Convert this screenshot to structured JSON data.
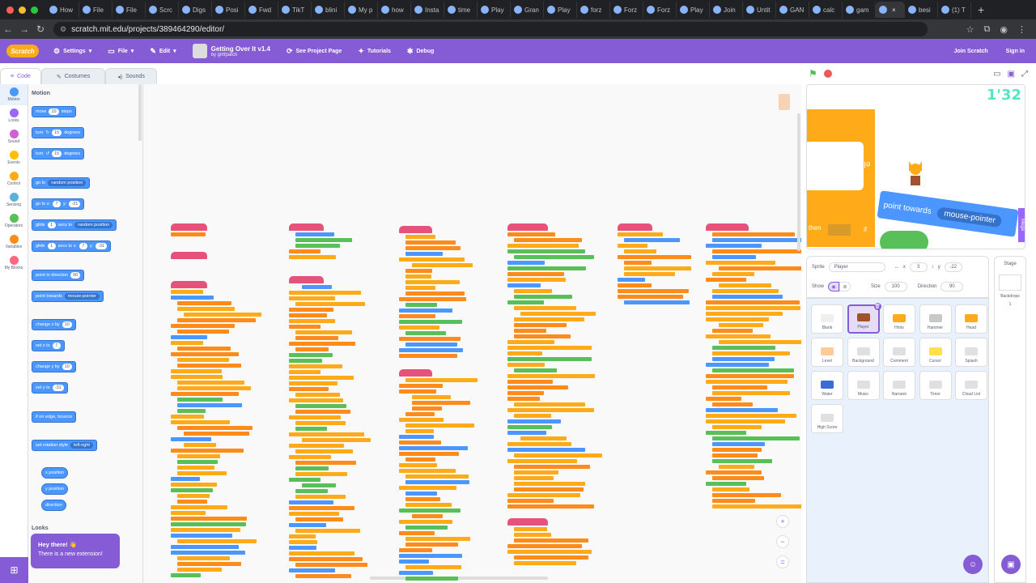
{
  "browser": {
    "tabs": [
      "How",
      "File",
      "File",
      "Scrc",
      "Digs",
      "Posi",
      "Fwd",
      "TikT",
      "blini",
      "My p",
      "how",
      "Insta",
      "time",
      "Play",
      "Gran",
      "Play",
      "forz",
      "Forz",
      "Forz",
      "Play",
      "Join",
      "Untit",
      "GAN",
      "calc",
      "gam",
      "",
      "besi",
      "(1) T"
    ],
    "url": "scratch.mit.edu/projects/389464290/editor/"
  },
  "menu": {
    "logo": "Scratch",
    "settings": "Settings",
    "file": "File",
    "edit": "Edit",
    "project_title": "Getting Over It v1.4",
    "project_by": "by griffpatch",
    "see_project_page": "See Project Page",
    "tutorials": "Tutorials",
    "debug": "Debug",
    "join": "Join Scratch",
    "signin": "Sign in"
  },
  "editor_tabs": {
    "code": "Code",
    "costumes": "Costumes",
    "sounds": "Sounds"
  },
  "categories": [
    {
      "label": "Motion",
      "color": "#4c97ff"
    },
    {
      "label": "Looks",
      "color": "#9966ff"
    },
    {
      "label": "Sound",
      "color": "#cf63cf"
    },
    {
      "label": "Events",
      "color": "#ffbf00"
    },
    {
      "label": "Control",
      "color": "#ffab19"
    },
    {
      "label": "Sensing",
      "color": "#5cb1d6"
    },
    {
      "label": "Operators",
      "color": "#59c059"
    },
    {
      "label": "Variables",
      "color": "#ff8c1a"
    },
    {
      "label": "My Blocks",
      "color": "#ff6680"
    }
  ],
  "flyout": {
    "motion_heading": "Motion",
    "looks_heading": "Looks",
    "move": {
      "a": "move",
      "n": "10",
      "b": "steps"
    },
    "turn_right": {
      "a": "turn",
      "n": "15",
      "b": "degrees"
    },
    "turn_left": {
      "a": "turn",
      "n": "15",
      "b": "degrees"
    },
    "goto": {
      "a": "go to",
      "dd": "random position"
    },
    "goto_xy": {
      "a": "go to x:",
      "x": "7",
      "b": "y:",
      "y": "-31"
    },
    "glide_to": {
      "a": "glide",
      "n": "1",
      "b": "secs to",
      "dd": "random position"
    },
    "glide_xy": {
      "a": "glide",
      "n": "1",
      "b": "secs to x:",
      "x": "7",
      "c": "y:",
      "y": "-31"
    },
    "point_dir": {
      "a": "point in direction",
      "n": "90"
    },
    "point_towards": {
      "a": "point towards",
      "dd": "mouse-pointer"
    },
    "change_x": {
      "a": "change x by",
      "n": "10"
    },
    "set_x": {
      "a": "set x to",
      "n": "7"
    },
    "change_y": {
      "a": "change y by",
      "n": "10"
    },
    "set_y": {
      "a": "set y to",
      "n": "-31"
    },
    "bounce": "if on edge, bounce",
    "rotation": {
      "a": "set rotation style",
      "dd": "left-right"
    },
    "x_pos": "x position",
    "y_pos": "y position",
    "direction": "direction"
  },
  "toast": {
    "title": "Hey there! 👋",
    "body": "There is a new extension!"
  },
  "stage": {
    "timer": "1'32",
    "else_label": "else",
    "point_towards": "point towards",
    "mouse_pointer": "mouse-pointer",
    "then_label": "then",
    "if_label": "if",
    "side_label": "Mega"
  },
  "sprite_info": {
    "sprite_label": "Sprite",
    "sprite_name": "Player",
    "x_label": "x",
    "x_value": "3",
    "y_label": "y",
    "y_value": "-22",
    "show_label": "Show",
    "size_label": "Size",
    "size_value": "100",
    "direction_label": "Direction",
    "direction_value": "90"
  },
  "sprites": [
    "Blank",
    "Player",
    "Hmts",
    "Hammer",
    "Head",
    "Level",
    "Background",
    "Comment",
    "Cursor",
    "Splash",
    "Water",
    "Music",
    "Narrator",
    "Timer",
    "Cloud List",
    "High Score"
  ],
  "stage_pane": {
    "label": "Stage",
    "backdrops_label": "Backdrops",
    "backdrops_count": "1"
  },
  "colors": {
    "accent": "#855cd6",
    "motion": "#4c97ff",
    "control": "#ffab19",
    "events": "#ffbf00",
    "operators": "#59c059",
    "myblocks": "#e6527a"
  }
}
